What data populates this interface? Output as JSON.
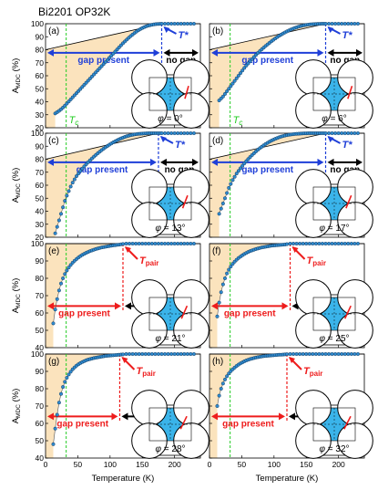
{
  "figure_title": "Bi2201 OP32K",
  "x_axis_label": "Temperature (K)",
  "y_axis_label_main": "A",
  "y_axis_label_sub": "MDC",
  "y_axis_label_unit": " (%)",
  "labels": {
    "gap_present": "gap present",
    "no_gap": "no gap",
    "t_star": "T*",
    "t_pair_main": "T",
    "t_pair_sub": "pair",
    "tc_main": "T",
    "tc_sub": "c",
    "phi_symbol": "φ"
  },
  "colors": {
    "gap_fill": "#fbe3bd",
    "blue": "#1f3fd8",
    "red": "#ee1c1c",
    "green": "#22cc22",
    "data_fill": "#2f8bd0",
    "fermi_blue": "#3ab4ea",
    "line": "#000000"
  },
  "chart_data": [
    {
      "type": "scatter",
      "panel": "(a)",
      "phi": "= 0°",
      "marker": "T*",
      "marker_T": 180,
      "tc": 32,
      "gap_curve": [
        [
          0,
          80
        ],
        [
          180,
          100
        ]
      ],
      "x": [
        15,
        18,
        21,
        24,
        27,
        30,
        33,
        36,
        39,
        42,
        45,
        48,
        51,
        54,
        57,
        60,
        63,
        66,
        69,
        72,
        75,
        78,
        81,
        84,
        87,
        90,
        93,
        96,
        99,
        102,
        105,
        108,
        111,
        114,
        117,
        120,
        123,
        126,
        129,
        132,
        135,
        138,
        141,
        144,
        147,
        150,
        153,
        156,
        159,
        162,
        165,
        168,
        171,
        174,
        177,
        180,
        185,
        190,
        195,
        200,
        205,
        210,
        215,
        220,
        225,
        230
      ],
      "y": [
        31,
        32,
        33,
        34.2,
        35.5,
        37,
        38.6,
        40.2,
        41.8,
        43.4,
        45,
        46.6,
        48.2,
        49.8,
        51.4,
        53,
        54.6,
        56.2,
        57.8,
        59.4,
        61,
        62.6,
        64.2,
        65.8,
        67.4,
        69,
        70.6,
        72.2,
        73.8,
        75.4,
        77,
        78.6,
        80.2,
        81.8,
        83.4,
        85,
        86.4,
        87.8,
        89.2,
        90.5,
        91.7,
        92.9,
        94,
        95,
        95.9,
        96.7,
        97.4,
        98,
        98.5,
        98.9,
        99.2,
        99.5,
        99.7,
        99.8,
        99.9,
        100,
        100,
        100,
        100,
        100,
        100,
        100,
        100,
        100,
        100,
        100
      ],
      "xlim": [
        0,
        240
      ],
      "ylim": [
        20,
        100
      ]
    },
    {
      "type": "scatter",
      "panel": "(b)",
      "phi": "= 6°",
      "marker": "T*",
      "marker_T": 180,
      "tc": 32,
      "gap_curve": [
        [
          0,
          80
        ],
        [
          180,
          100
        ]
      ],
      "x": [
        15,
        18,
        21,
        24,
        27,
        30,
        33,
        36,
        39,
        42,
        45,
        48,
        51,
        54,
        57,
        60,
        63,
        66,
        69,
        72,
        75,
        78,
        81,
        84,
        87,
        90,
        93,
        96,
        99,
        102,
        105,
        108,
        111,
        114,
        117,
        120,
        123,
        126,
        129,
        132,
        135,
        138,
        141,
        144,
        147,
        150,
        153,
        156,
        159,
        162,
        165,
        168,
        171,
        174,
        177,
        180,
        185,
        190,
        195,
        200,
        205,
        210,
        215,
        220,
        225,
        230
      ],
      "y": [
        41,
        42.5,
        44,
        46,
        48,
        50,
        52,
        54,
        56,
        58,
        60,
        62,
        64,
        66,
        67.8,
        69.5,
        71.2,
        72.8,
        74.4,
        76,
        77.5,
        78.9,
        80.3,
        81.6,
        82.9,
        84.1,
        85.3,
        86.5,
        87.6,
        88.7,
        89.7,
        90.7,
        91.6,
        92.5,
        93.3,
        94.1,
        94.8,
        95.5,
        96.1,
        96.7,
        97.2,
        97.7,
        98.1,
        98.5,
        98.8,
        99.1,
        99.3,
        99.5,
        99.6,
        99.7,
        99.8,
        99.9,
        99.9,
        100,
        100,
        100,
        100,
        100,
        100,
        100,
        100,
        100,
        100,
        100,
        100,
        100
      ],
      "xlim": [
        0,
        240
      ],
      "ylim": [
        20,
        100
      ]
    },
    {
      "type": "scatter",
      "panel": "(c)",
      "phi": "= 13°",
      "marker": "T*",
      "marker_T": 175,
      "tc": 32,
      "gap_curve": [
        [
          0,
          80
        ],
        [
          175,
          100
        ]
      ],
      "x": [
        15,
        18,
        21,
        24,
        27,
        30,
        33,
        36,
        39,
        42,
        45,
        48,
        51,
        54,
        57,
        60,
        63,
        66,
        69,
        72,
        75,
        78,
        81,
        84,
        87,
        90,
        93,
        96,
        99,
        102,
        105,
        108,
        111,
        114,
        117,
        120,
        123,
        126,
        129,
        132,
        135,
        138,
        141,
        144,
        147,
        150,
        153,
        156,
        159,
        162,
        165,
        168,
        171,
        174,
        177,
        180,
        185,
        190,
        195,
        200,
        205,
        210,
        215,
        220,
        225,
        230
      ],
      "y": [
        23,
        28,
        33,
        38,
        43,
        48,
        52,
        55.5,
        59,
        62,
        64.5,
        67,
        69,
        71,
        72.8,
        74.5,
        76.1,
        77.7,
        79.2,
        80.6,
        82,
        83.3,
        84.6,
        85.8,
        87,
        88.1,
        89.2,
        90.2,
        91.2,
        92.1,
        93,
        93.8,
        94.6,
        95.3,
        96,
        96.6,
        97.2,
        97.7,
        98.1,
        98.5,
        98.8,
        99.1,
        99.3,
        99.5,
        99.6,
        99.7,
        99.8,
        99.9,
        100,
        100,
        100,
        100,
        100,
        100,
        100,
        100,
        100,
        100,
        100,
        100,
        100,
        100,
        100,
        100,
        100,
        100
      ],
      "xlim": [
        0,
        240
      ],
      "ylim": [
        20,
        100
      ]
    },
    {
      "type": "scatter",
      "panel": "(d)",
      "phi": "= 17°",
      "marker": "T*",
      "marker_T": 180,
      "tc": 32,
      "gap_curve": [
        [
          0,
          80
        ],
        [
          180,
          100
        ]
      ],
      "x": [
        15,
        18,
        21,
        24,
        27,
        30,
        33,
        36,
        39,
        42,
        45,
        48,
        51,
        54,
        57,
        60,
        63,
        66,
        69,
        72,
        75,
        78,
        81,
        84,
        87,
        90,
        93,
        96,
        99,
        102,
        105,
        108,
        111,
        114,
        117,
        120,
        123,
        126,
        129,
        132,
        135,
        138,
        141,
        144,
        147,
        150,
        153,
        156,
        159,
        162,
        165,
        168,
        171,
        174,
        177,
        180,
        185,
        190,
        195,
        200,
        205,
        210,
        215,
        220,
        225,
        230
      ],
      "y": [
        38,
        42,
        46,
        50,
        54,
        58,
        61,
        64,
        66.5,
        69,
        71,
        73,
        75,
        76.8,
        78.5,
        80.1,
        81.7,
        83.2,
        84.6,
        86,
        87.3,
        88.5,
        89.6,
        90.7,
        91.7,
        92.6,
        93.5,
        94.3,
        95,
        95.7,
        96.3,
        96.9,
        97.4,
        97.8,
        98.2,
        98.5,
        98.8,
        99,
        99.2,
        99.4,
        99.5,
        99.6,
        99.7,
        99.8,
        99.9,
        99.9,
        100,
        100,
        100,
        100,
        100,
        100,
        100,
        100,
        100,
        100,
        100,
        100,
        100,
        100,
        100,
        100,
        100,
        100,
        100,
        100
      ],
      "xlim": [
        0,
        240
      ],
      "ylim": [
        20,
        100
      ]
    },
    {
      "type": "scatter",
      "panel": "(e)",
      "phi": "= 21°",
      "marker": "Tpair",
      "marker_T": 120,
      "tc": 32,
      "gap_curve": [
        [
          0,
          100
        ],
        [
          120,
          100
        ]
      ],
      "x": [
        12,
        15,
        18,
        21,
        24,
        27,
        30,
        33,
        36,
        39,
        42,
        45,
        48,
        51,
        54,
        57,
        60,
        63,
        66,
        69,
        72,
        75,
        78,
        81,
        84,
        87,
        90,
        93,
        96,
        99,
        102,
        105,
        108,
        111,
        114,
        117,
        120,
        125,
        130,
        135,
        140,
        145,
        150,
        155,
        160,
        165,
        170,
        175,
        180,
        185,
        190,
        195,
        200,
        205,
        210,
        215,
        220,
        225,
        230
      ],
      "y": [
        54,
        62,
        68,
        73,
        77,
        80,
        82.5,
        84.5,
        86.2,
        87.7,
        89,
        90.1,
        91.1,
        92,
        92.8,
        93.5,
        94.1,
        94.7,
        95.2,
        95.7,
        96.1,
        96.5,
        96.9,
        97.2,
        97.5,
        97.8,
        98,
        98.2,
        98.4,
        98.6,
        98.8,
        99,
        99.1,
        99.3,
        99.4,
        99.6,
        99.8,
        100,
        100,
        100,
        100,
        100,
        100,
        100,
        100,
        100,
        100,
        100,
        100,
        100,
        100,
        100,
        100,
        100,
        100,
        100,
        100,
        100,
        100
      ],
      "xlim": [
        0,
        240
      ],
      "ylim": [
        40,
        100
      ]
    },
    {
      "type": "scatter",
      "panel": "(f)",
      "phi": "= 25°",
      "marker": "Tpair",
      "marker_T": 125,
      "tc": 32,
      "gap_curve": [
        [
          0,
          100
        ],
        [
          125,
          100
        ]
      ],
      "x": [
        12,
        15,
        18,
        21,
        24,
        27,
        30,
        33,
        36,
        39,
        42,
        45,
        48,
        51,
        54,
        57,
        60,
        63,
        66,
        69,
        72,
        75,
        78,
        81,
        84,
        87,
        90,
        93,
        96,
        99,
        102,
        105,
        108,
        111,
        114,
        117,
        120,
        125,
        130,
        135,
        140,
        145,
        150,
        155,
        160,
        165,
        170,
        175,
        180,
        185,
        190,
        195,
        200,
        205,
        210,
        215,
        220,
        225,
        230
      ],
      "y": [
        58,
        66,
        72,
        76.5,
        80,
        82.8,
        85,
        86.8,
        88.3,
        89.6,
        90.7,
        91.7,
        92.5,
        93.3,
        94,
        94.6,
        95.2,
        95.7,
        96.1,
        96.5,
        96.9,
        97.2,
        97.5,
        97.8,
        98,
        98.2,
        98.4,
        98.6,
        98.8,
        98.9,
        99,
        99.1,
        99.2,
        99.3,
        99.4,
        99.5,
        99.7,
        100,
        100,
        100,
        100,
        100,
        100,
        100,
        100,
        100,
        100,
        100,
        100,
        100,
        100,
        100,
        100,
        100,
        100,
        100,
        100,
        100,
        100
      ],
      "xlim": [
        0,
        240
      ],
      "ylim": [
        40,
        100
      ]
    },
    {
      "type": "scatter",
      "panel": "(g)",
      "phi": "= 28°",
      "marker": "Tpair",
      "marker_T": 115,
      "tc": 32,
      "gap_curve": [
        [
          0,
          100
        ],
        [
          115,
          100
        ]
      ],
      "x": [
        12,
        15,
        18,
        21,
        24,
        27,
        30,
        33,
        36,
        39,
        42,
        45,
        48,
        51,
        54,
        57,
        60,
        63,
        66,
        69,
        72,
        75,
        78,
        81,
        84,
        87,
        90,
        93,
        96,
        99,
        102,
        105,
        108,
        111,
        114,
        117,
        120,
        125,
        130,
        135,
        140,
        145,
        150,
        155,
        160,
        165,
        170,
        175,
        180,
        185,
        190,
        195,
        200,
        205,
        210,
        215,
        220,
        225,
        230
      ],
      "y": [
        48,
        57,
        65,
        72,
        77,
        81,
        84,
        86.3,
        88.2,
        89.8,
        91.2,
        92.3,
        93.3,
        94.1,
        94.8,
        95.4,
        95.9,
        96.4,
        96.8,
        97.1,
        97.4,
        97.7,
        97.9,
        98.1,
        98.3,
        98.5,
        98.7,
        98.9,
        99,
        99.1,
        99.2,
        99.3,
        99.4,
        99.5,
        99.6,
        99.7,
        99.8,
        100,
        100,
        100,
        100,
        100,
        100,
        100,
        100,
        100,
        100,
        100,
        100,
        100,
        100,
        100,
        100,
        100,
        100,
        100,
        100,
        100,
        100
      ],
      "xlim": [
        0,
        240
      ],
      "ylim": [
        40,
        100
      ]
    },
    {
      "type": "scatter",
      "panel": "(h)",
      "phi": "= 32°",
      "marker": "Tpair",
      "marker_T": 120,
      "tc": 32,
      "gap_curve": [
        [
          0,
          100
        ],
        [
          120,
          100
        ]
      ],
      "x": [
        12,
        15,
        18,
        21,
        24,
        27,
        30,
        33,
        36,
        39,
        42,
        45,
        48,
        51,
        54,
        57,
        60,
        63,
        66,
        69,
        72,
        75,
        78,
        81,
        84,
        87,
        90,
        93,
        96,
        99,
        102,
        105,
        108,
        111,
        114,
        117,
        120,
        125,
        130,
        135,
        140,
        145,
        150,
        155,
        160,
        165,
        170,
        175,
        180,
        185,
        190,
        195,
        200,
        205,
        210,
        215,
        220,
        225,
        230
      ],
      "y": [
        70,
        76,
        80,
        83,
        85.3,
        87.2,
        88.8,
        90.1,
        91.2,
        92.2,
        93.1,
        93.9,
        94.6,
        95.2,
        95.8,
        96.3,
        96.7,
        97.1,
        97.4,
        97.7,
        98,
        98.2,
        98.4,
        98.6,
        98.8,
        98.9,
        99,
        99.1,
        99.2,
        99.3,
        99.4,
        99.5,
        99.6,
        99.6,
        99.7,
        99.8,
        99.9,
        100,
        100,
        100,
        100,
        100,
        100,
        100,
        100,
        100,
        100,
        100,
        100,
        100,
        100,
        100,
        100,
        100,
        100,
        100,
        100,
        100,
        100
      ],
      "xlim": [
        0,
        240
      ],
      "ylim": [
        40,
        100
      ]
    }
  ],
  "x_ticks": [
    0,
    50,
    100,
    150,
    200
  ],
  "y_ticks_top": [
    20,
    30,
    40,
    50,
    60,
    70,
    80,
    90,
    100
  ],
  "y_ticks_bottom": [
    40,
    50,
    60,
    70,
    80,
    90,
    100
  ]
}
